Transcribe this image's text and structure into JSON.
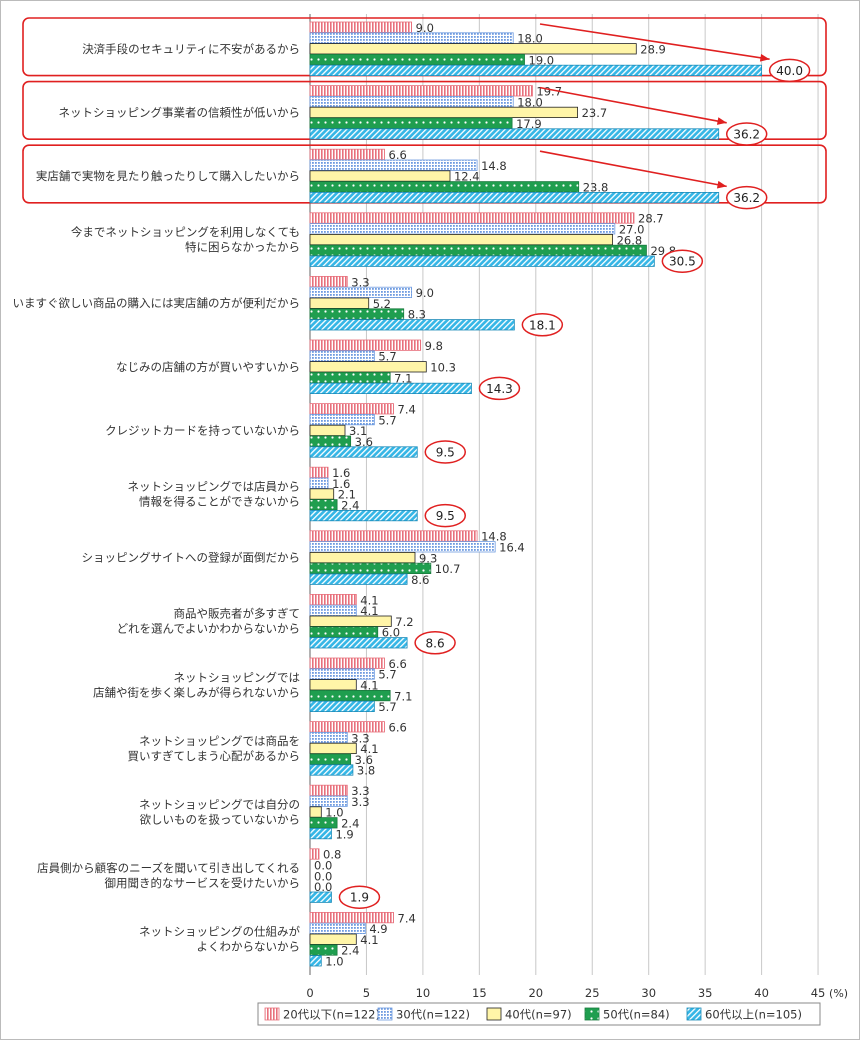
{
  "chart_data": {
    "type": "bar",
    "orientation": "horizontal",
    "xlim": [
      0,
      45
    ],
    "x_ticks": [
      "0",
      "5",
      "10",
      "15",
      "20",
      "25",
      "30",
      "35",
      "40",
      "45"
    ],
    "x_unit": "(%)",
    "grid": true,
    "legend_position": "bottom",
    "categories": [
      "決済手段のセキュリティに不安があるから",
      "ネットショッピング事業者の信頼性が低いから",
      "実店舗で実物を見たり触ったりして購入したいから",
      "今までネットショッピングを利用しなくても\n特に困らなかったから",
      "いますぐ欲しい商品の購入には実店舗の方が便利だから",
      "なじみの店舗の方が買いやすいから",
      "クレジットカードを持っていないから",
      "ネットショッピングでは店員から\n情報を得ることができないから",
      "ショッピングサイトへの登録が面倒だから",
      "商品や販売者が多すぎて\nどれを選んでよいかわからないから",
      "ネットショッピングでは\n店舗や街を歩く楽しみが得られないから",
      "ネットショッピングでは商品を\n買いすぎてしまう心配があるから",
      "ネットショッピングでは自分の\n欲しいものを扱っていないから",
      "店員側から顧客のニーズを聞いて引き出してくれる\n御用聞き的なサービスを受けたいから",
      "ネットショッピングの仕組みが\nよくわからないから"
    ],
    "series": [
      {
        "name": "20代以下(n=122)",
        "color": "#e8707c",
        "pattern": "vertical-stripes",
        "values": [
          9.0,
          19.7,
          6.6,
          28.7,
          3.3,
          9.8,
          7.4,
          1.6,
          14.8,
          4.1,
          6.6,
          6.6,
          3.3,
          0.8,
          7.4
        ]
      },
      {
        "name": "30代(n=122)",
        "color": "#6e9be0",
        "pattern": "dots-grid",
        "values": [
          18.0,
          18.0,
          14.8,
          27.0,
          9.0,
          5.7,
          5.7,
          1.6,
          16.4,
          4.1,
          5.7,
          3.3,
          3.3,
          0.0,
          4.9
        ]
      },
      {
        "name": "40代(n=97)",
        "color": "#fff5a8",
        "pattern": "solid",
        "values": [
          28.9,
          23.7,
          12.4,
          26.8,
          5.2,
          10.3,
          3.1,
          2.1,
          9.3,
          7.2,
          4.1,
          4.1,
          1.0,
          0.0,
          4.1
        ]
      },
      {
        "name": "50代(n=84)",
        "color": "#1f9e4f",
        "pattern": "white-dots",
        "values": [
          19.0,
          17.9,
          23.8,
          29.8,
          8.3,
          7.1,
          3.6,
          2.4,
          10.7,
          6.0,
          7.1,
          3.6,
          2.4,
          0.0,
          2.4
        ]
      },
      {
        "name": "60代以上(n=105)",
        "color": "#35b6e6",
        "pattern": "diagonal-stripes",
        "values": [
          40.0,
          36.2,
          36.2,
          30.5,
          18.1,
          14.3,
          9.5,
          9.5,
          8.6,
          8.6,
          5.7,
          3.8,
          1.9,
          1.9,
          1.0
        ]
      }
    ],
    "highlight_boxes": [
      0,
      1,
      2
    ],
    "circled_series": "60代以上(n=105)",
    "circled_categories": [
      0,
      1,
      2,
      3,
      4,
      5,
      6,
      7,
      9,
      13
    ],
    "arrow_categories": [
      0,
      1,
      2
    ],
    "colors": {
      "highlight": "#e02020",
      "grid": "#c8c8c8",
      "axis": "#666666",
      "text": "#333333",
      "border": "#bbbbbb"
    }
  }
}
